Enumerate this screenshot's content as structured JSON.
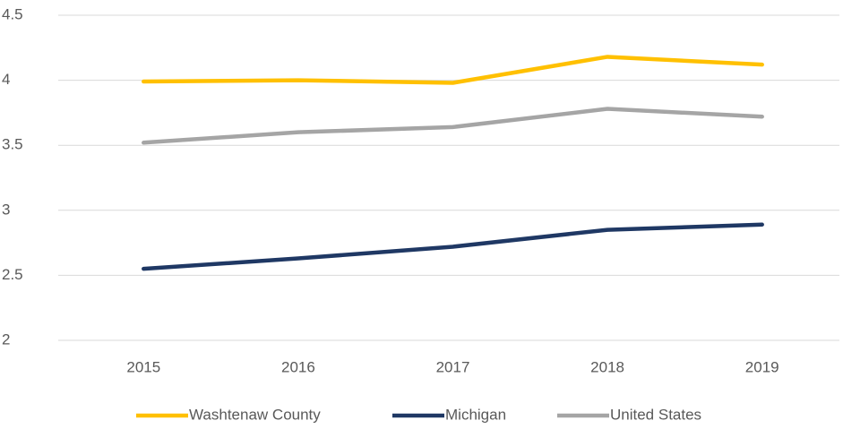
{
  "chart_data": {
    "type": "line",
    "categories": [
      "2015",
      "2016",
      "2017",
      "2018",
      "2019"
    ],
    "series": [
      {
        "name": "Washtenaw County",
        "color": "#ffc000",
        "values": [
          3.99,
          4.0,
          3.98,
          4.18,
          4.12
        ]
      },
      {
        "name": "Michigan",
        "color": "#1f3864",
        "values": [
          2.55,
          2.63,
          2.72,
          2.85,
          2.89
        ]
      },
      {
        "name": "United States",
        "color": "#a5a5a5",
        "values": [
          3.52,
          3.6,
          3.64,
          3.78,
          3.72
        ]
      }
    ],
    "ylim": [
      2,
      4.5
    ],
    "yticks": [
      2,
      2.5,
      3,
      3.5,
      4,
      4.5
    ],
    "grid": true,
    "legend": "bottom"
  }
}
